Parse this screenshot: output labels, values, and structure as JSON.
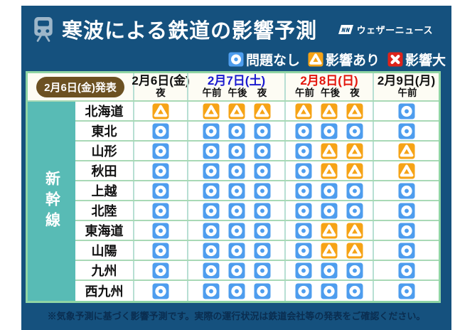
{
  "header": {
    "title": "寒波による鉄道の影響予測",
    "brand": "ウェザーニュース"
  },
  "legend": {
    "items": [
      {
        "status": "ok",
        "label": "問題なし"
      },
      {
        "status": "warn",
        "label": "影響あり"
      },
      {
        "status": "severe",
        "label": "影響大"
      }
    ]
  },
  "announcement": "2月6日(金)発表",
  "category": "新幹線",
  "columns": [
    {
      "date": "2月6日(金)",
      "color": "#111111",
      "periods": [
        "夜"
      ]
    },
    {
      "date": "2月7日(土)",
      "color": "#1A1ACF",
      "periods": [
        "午前",
        "午後",
        "夜"
      ]
    },
    {
      "date": "2月8日(日)",
      "color": "#E3150C",
      "periods": [
        "午前",
        "午後",
        "夜"
      ]
    },
    {
      "date": "2月9日(月)",
      "color": "#111111",
      "periods": [
        "午前"
      ]
    }
  ],
  "rows": [
    {
      "label": "北海道",
      "cells": [
        [
          "warn"
        ],
        [
          "warn",
          "warn",
          "warn"
        ],
        [
          "warn",
          "warn",
          "warn"
        ],
        [
          "ok"
        ]
      ]
    },
    {
      "label": "東北",
      "cells": [
        [
          "ok"
        ],
        [
          "ok",
          "ok",
          "ok"
        ],
        [
          "ok",
          "ok",
          "ok"
        ],
        [
          "ok"
        ]
      ]
    },
    {
      "label": "山形",
      "cells": [
        [
          "ok"
        ],
        [
          "ok",
          "ok",
          "ok"
        ],
        [
          "ok",
          "warn",
          "warn"
        ],
        [
          "warn"
        ]
      ]
    },
    {
      "label": "秋田",
      "cells": [
        [
          "ok"
        ],
        [
          "ok",
          "ok",
          "ok"
        ],
        [
          "ok",
          "warn",
          "warn"
        ],
        [
          "warn"
        ]
      ]
    },
    {
      "label": "上越",
      "cells": [
        [
          "ok"
        ],
        [
          "ok",
          "ok",
          "ok"
        ],
        [
          "ok",
          "ok",
          "ok"
        ],
        [
          "ok"
        ]
      ]
    },
    {
      "label": "北陸",
      "cells": [
        [
          "ok"
        ],
        [
          "ok",
          "ok",
          "ok"
        ],
        [
          "ok",
          "ok",
          "ok"
        ],
        [
          "ok"
        ]
      ]
    },
    {
      "label": "東海道",
      "cells": [
        [
          "ok"
        ],
        [
          "ok",
          "ok",
          "ok"
        ],
        [
          "ok",
          "warn",
          "warn"
        ],
        [
          "ok"
        ]
      ]
    },
    {
      "label": "山陽",
      "cells": [
        [
          "ok"
        ],
        [
          "ok",
          "ok",
          "ok"
        ],
        [
          "ok",
          "warn",
          "warn"
        ],
        [
          "ok"
        ]
      ]
    },
    {
      "label": "九州",
      "cells": [
        [
          "ok"
        ],
        [
          "ok",
          "ok",
          "ok"
        ],
        [
          "ok",
          "ok",
          "ok"
        ],
        [
          "ok"
        ]
      ]
    },
    {
      "label": "西九州",
      "cells": [
        [
          "ok"
        ],
        [
          "ok",
          "ok",
          "ok"
        ],
        [
          "ok",
          "ok",
          "ok"
        ],
        [
          "ok"
        ]
      ]
    }
  ],
  "footer_note": "※気象予測に基づく影響予測です。実際の運行状況は鉄道会社等の発表をご確認ください。",
  "colors": {
    "panel": "#15517E",
    "ok": "#4E9DEE",
    "warn": "#F6A316",
    "severe": "#DE231B",
    "sidebar": "#58BBB5",
    "table_border": "#8FD4A4",
    "pill": "#6C5122",
    "saturday_blue": "#1A1ACF",
    "sunday_red": "#E3150C"
  },
  "chart_data": {
    "type": "table",
    "title": "寒波による鉄道の影響予測",
    "issued": "2月6日(金)発表",
    "row_group": "新幹線",
    "legend": {
      "○": "問題なし",
      "△": "影響あり",
      "×": "影響大"
    },
    "columns": [
      "2月6日(金) 夜",
      "2月7日(土) 午前",
      "2月7日(土) 午後",
      "2月7日(土) 夜",
      "2月8日(日) 午前",
      "2月8日(日) 午後",
      "2月8日(日) 夜",
      "2月9日(月) 午前"
    ],
    "rows": [
      {
        "line": "北海道",
        "values": [
          "△",
          "△",
          "△",
          "△",
          "△",
          "△",
          "△",
          "○"
        ]
      },
      {
        "line": "東北",
        "values": [
          "○",
          "○",
          "○",
          "○",
          "○",
          "○",
          "○",
          "○"
        ]
      },
      {
        "line": "山形",
        "values": [
          "○",
          "○",
          "○",
          "○",
          "○",
          "△",
          "△",
          "△"
        ]
      },
      {
        "line": "秋田",
        "values": [
          "○",
          "○",
          "○",
          "○",
          "○",
          "△",
          "△",
          "△"
        ]
      },
      {
        "line": "上越",
        "values": [
          "○",
          "○",
          "○",
          "○",
          "○",
          "○",
          "○",
          "○"
        ]
      },
      {
        "line": "北陸",
        "values": [
          "○",
          "○",
          "○",
          "○",
          "○",
          "○",
          "○",
          "○"
        ]
      },
      {
        "line": "東海道",
        "values": [
          "○",
          "○",
          "○",
          "○",
          "○",
          "△",
          "△",
          "○"
        ]
      },
      {
        "line": "山陽",
        "values": [
          "○",
          "○",
          "○",
          "○",
          "○",
          "△",
          "△",
          "○"
        ]
      },
      {
        "line": "九州",
        "values": [
          "○",
          "○",
          "○",
          "○",
          "○",
          "○",
          "○",
          "○"
        ]
      },
      {
        "line": "西九州",
        "values": [
          "○",
          "○",
          "○",
          "○",
          "○",
          "○",
          "○",
          "○"
        ]
      }
    ]
  }
}
